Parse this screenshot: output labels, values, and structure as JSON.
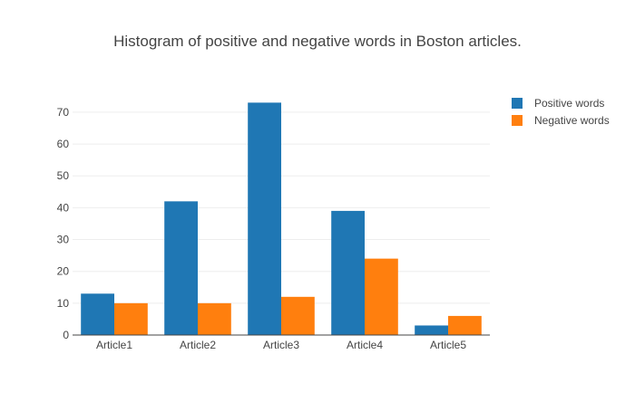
{
  "chart_data": {
    "type": "bar",
    "title": "Histogram of positive and negative words in Boston articles.",
    "xlabel": "",
    "ylabel": "",
    "categories": [
      "Article1",
      "Article2",
      "Article3",
      "Article4",
      "Article5"
    ],
    "series": [
      {
        "name": "Positive words",
        "values": [
          13,
          42,
          73,
          39,
          3
        ],
        "color": "#1f77b4"
      },
      {
        "name": "Negative words",
        "values": [
          10,
          10,
          12,
          24,
          6
        ],
        "color": "#ff7f0e"
      }
    ],
    "ylim": [
      0,
      76.8
    ],
    "yticks": [
      0,
      10,
      20,
      30,
      40,
      50,
      60,
      70
    ],
    "grid": true,
    "legend": "top-right"
  }
}
